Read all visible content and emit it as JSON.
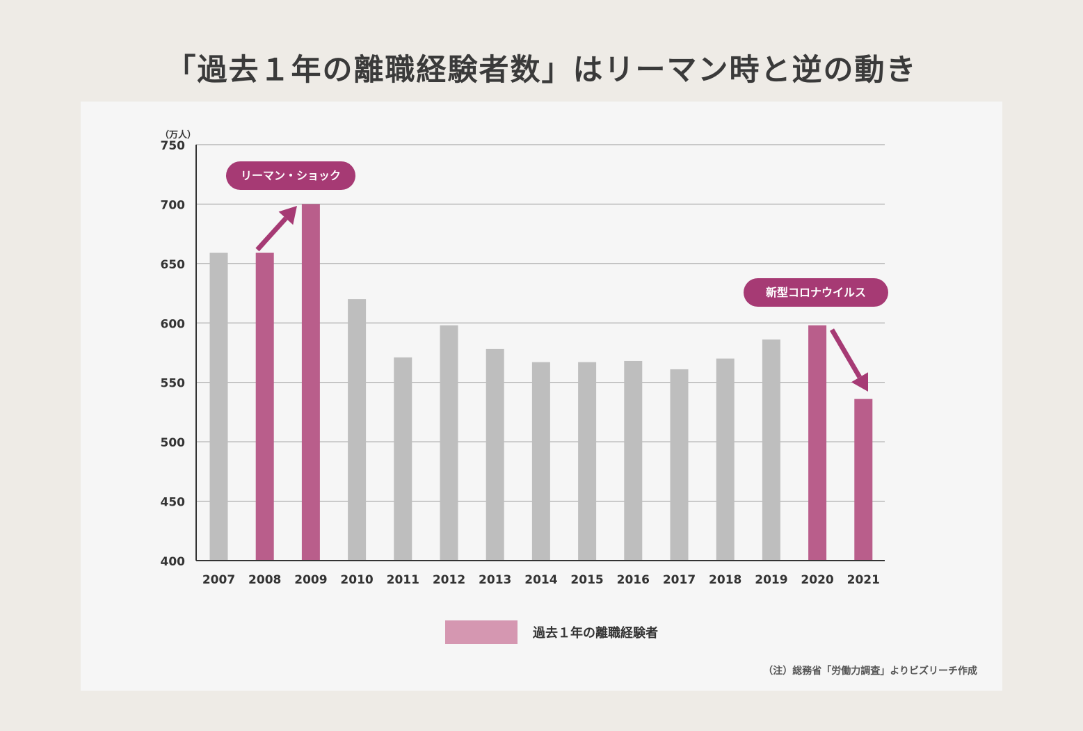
{
  "title": "「過去１年の離職経験者数」はリーマン時と逆の動き",
  "colors": {
    "background": "#eeebe6",
    "panel": "#f6f6f6",
    "highlight_bar": "#b95e8b",
    "normal_bar": "#bebebe",
    "callout": "#a63a74",
    "legend_swatch": "#d597b1",
    "gridline": "#9a9a9a"
  },
  "chart_data": {
    "type": "bar",
    "unit_label": "（万人）",
    "categories": [
      "2007",
      "2008",
      "2009",
      "2010",
      "2011",
      "2012",
      "2013",
      "2014",
      "2015",
      "2016",
      "2017",
      "2018",
      "2019",
      "2020",
      "2021"
    ],
    "values": [
      659,
      659,
      700,
      620,
      571,
      598,
      578,
      567,
      567,
      568,
      561,
      570,
      586,
      598,
      536
    ],
    "highlighted": [
      false,
      true,
      true,
      false,
      false,
      false,
      false,
      false,
      false,
      false,
      false,
      false,
      false,
      true,
      true
    ],
    "ylim": [
      400,
      750
    ],
    "yticks": [
      400,
      450,
      500,
      550,
      600,
      650,
      700,
      750
    ],
    "grid": true,
    "legend": {
      "label": "過去１年の離職経験者",
      "position": "bottom-center"
    },
    "annotations": [
      {
        "text": "リーマン・ショック",
        "from": "2008",
        "to": "2009",
        "direction": "up"
      },
      {
        "text": "新型コロナウイルス",
        "from": "2020",
        "to": "2021",
        "direction": "down"
      }
    ]
  },
  "note": "（注）総務省「労働力調査」よりビズリーチ作成"
}
